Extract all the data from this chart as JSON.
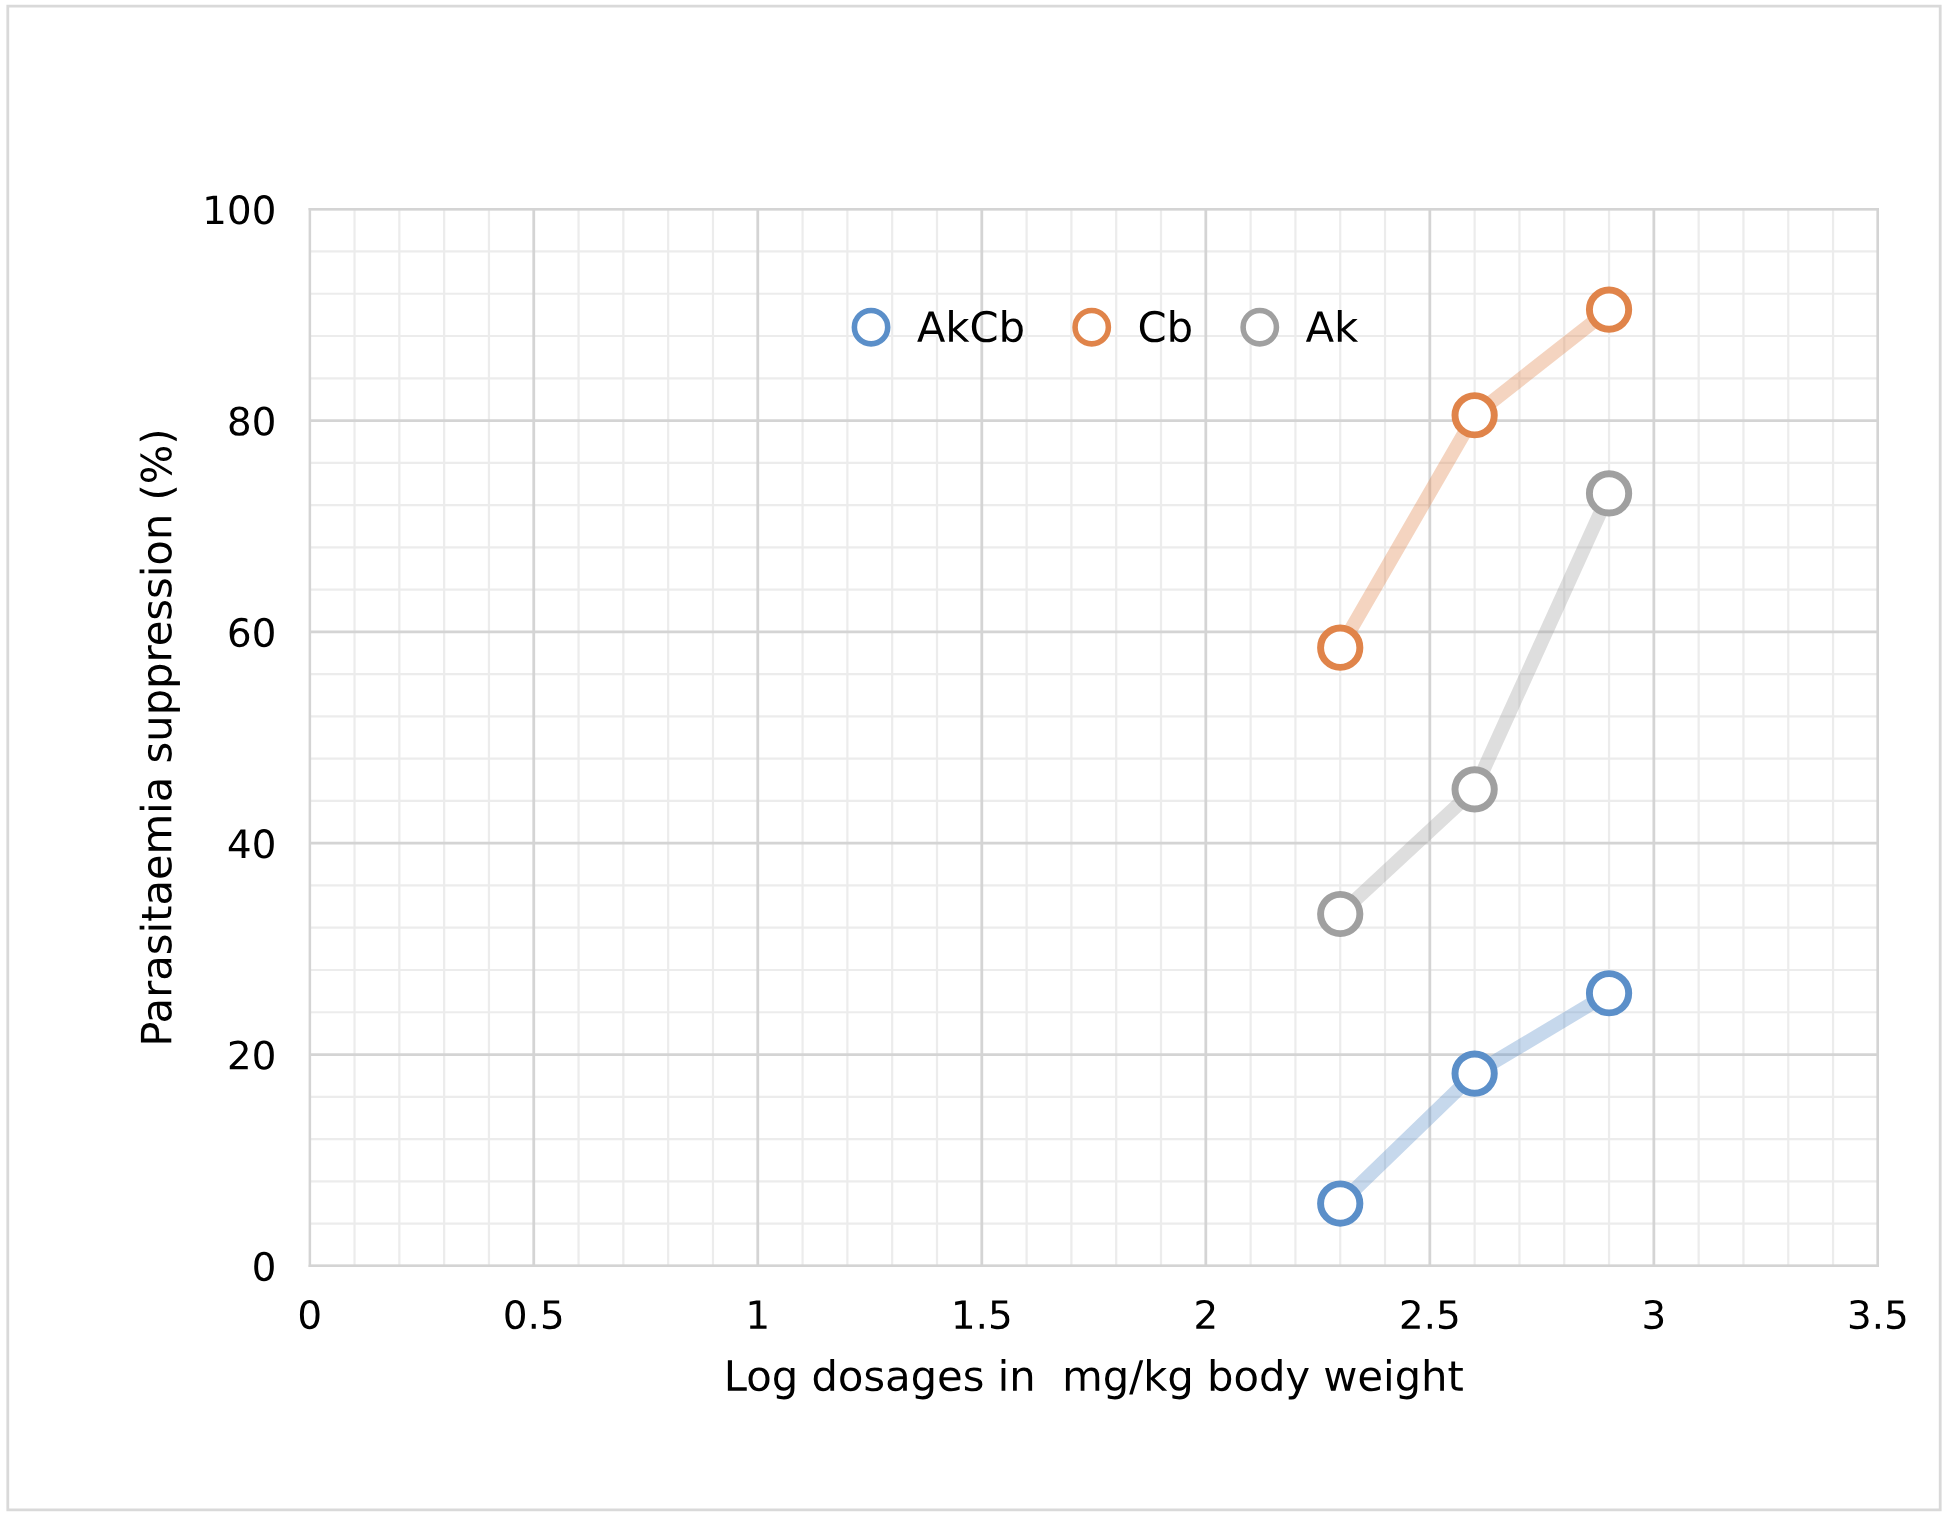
{
  "chart_data": {
    "type": "line",
    "xlabel": "Log dosages in  mg/kg body weight",
    "ylabel": "Parasitaemia suppression (%)",
    "series": [
      {
        "name": "AkCb",
        "color": "#5b8fc9",
        "x": [
          2.3,
          2.6,
          2.9
        ],
        "values": [
          5.9,
          18.2,
          25.8
        ]
      },
      {
        "name": "Cb",
        "color": "#e0844a",
        "x": [
          2.3,
          2.6,
          2.9
        ],
        "values": [
          58.5,
          80.5,
          90.5
        ]
      },
      {
        "name": "Ak",
        "color": "#a0a0a0",
        "x": [
          2.3,
          2.6,
          2.9
        ],
        "values": [
          33.3,
          45.1,
          73.1
        ]
      }
    ],
    "xlim": [
      0,
      3.5
    ],
    "xticks": [
      0,
      0.5,
      1,
      1.5,
      2,
      2.5,
      3,
      3.5
    ],
    "ylim": [
      0,
      100
    ],
    "yticks": [
      0,
      20,
      40,
      60,
      80,
      100
    ],
    "grid": true,
    "legend": "top",
    "marker": "circle"
  }
}
